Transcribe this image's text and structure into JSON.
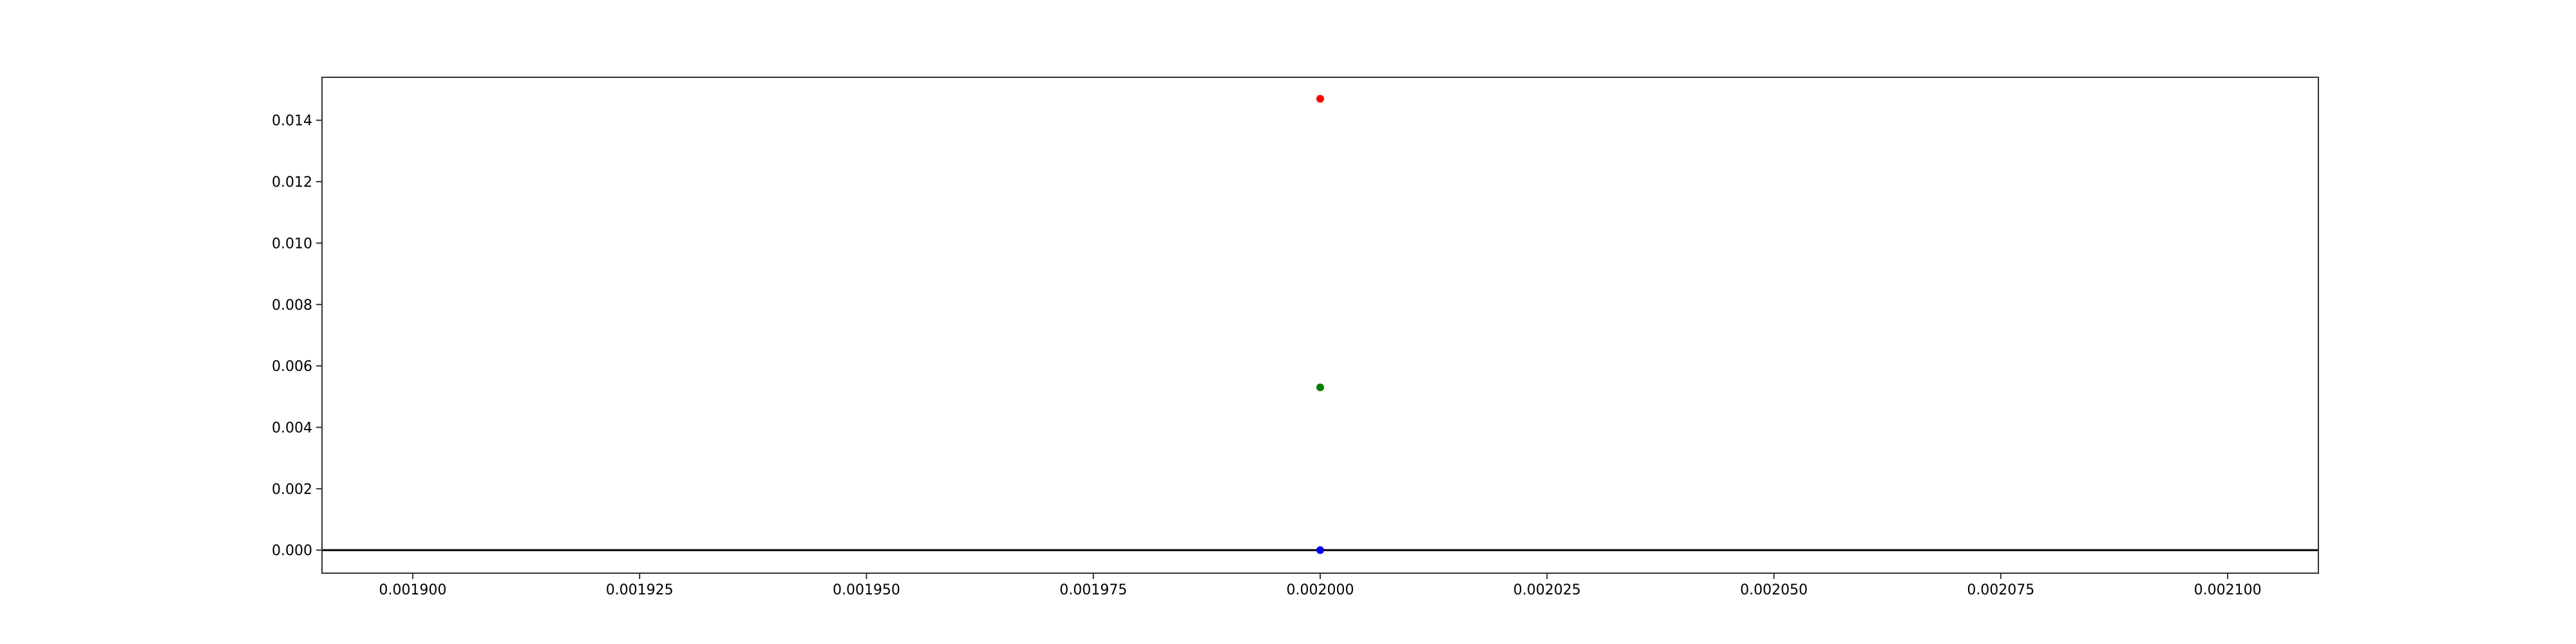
{
  "chart_data": {
    "type": "scatter",
    "title": "",
    "xlabel": "",
    "ylabel": "",
    "xlim": [
      0.00189,
      0.00211
    ],
    "ylim": [
      -0.00075,
      0.0154
    ],
    "grid": false,
    "legend": "none",
    "x_ticks": [
      {
        "value": 0.0019,
        "label": "0.001900"
      },
      {
        "value": 0.001925,
        "label": "0.001925"
      },
      {
        "value": 0.00195,
        "label": "0.001950"
      },
      {
        "value": 0.001975,
        "label": "0.001975"
      },
      {
        "value": 0.002,
        "label": "0.002000"
      },
      {
        "value": 0.002025,
        "label": "0.002025"
      },
      {
        "value": 0.00205,
        "label": "0.002050"
      },
      {
        "value": 0.002075,
        "label": "0.002075"
      },
      {
        "value": 0.0021,
        "label": "0.002100"
      }
    ],
    "y_ticks": [
      {
        "value": 0.0,
        "label": "0.000"
      },
      {
        "value": 0.002,
        "label": "0.002"
      },
      {
        "value": 0.004,
        "label": "0.004"
      },
      {
        "value": 0.006,
        "label": "0.006"
      },
      {
        "value": 0.008,
        "label": "0.008"
      },
      {
        "value": 0.01,
        "label": "0.010"
      },
      {
        "value": 0.012,
        "label": "0.012"
      },
      {
        "value": 0.014,
        "label": "0.014"
      }
    ],
    "reference_line": {
      "y": 0.0,
      "color": "#000000"
    },
    "points": [
      {
        "x": 0.002,
        "y": 0.0147,
        "color": "#ff0000"
      },
      {
        "x": 0.002,
        "y": 0.0053,
        "color": "#008000"
      },
      {
        "x": 0.002,
        "y": 0.0,
        "color": "#0000ff"
      }
    ]
  }
}
